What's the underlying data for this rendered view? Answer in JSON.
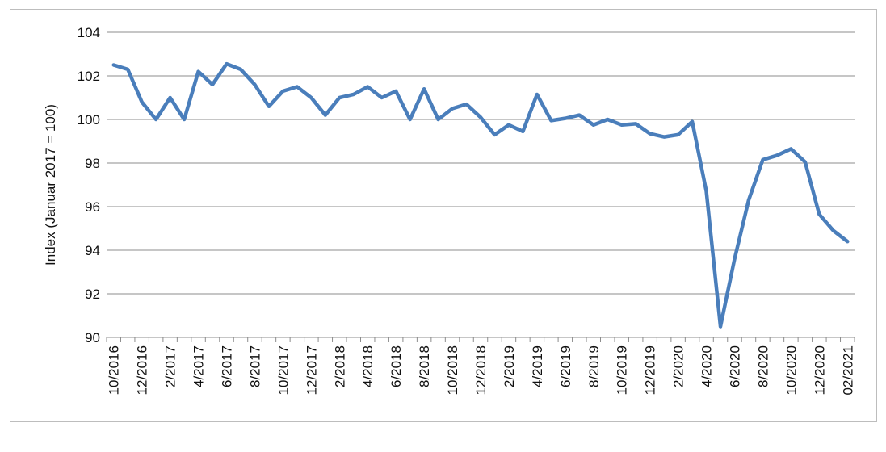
{
  "chart_data": {
    "type": "line",
    "title": "",
    "xlabel": "",
    "ylabel": "Index (Januar 2017 = 100)",
    "ylim": [
      90,
      104
    ],
    "y_ticks": [
      "90",
      "92",
      "94",
      "96",
      "98",
      "100",
      "102",
      "104"
    ],
    "x_tick_labels": [
      "10/2016",
      "12/2016",
      "2/2017",
      "4/2017",
      "6/2017",
      "8/2017",
      "10/2017",
      "12/2017",
      "2/2018",
      "4/2018",
      "6/2018",
      "8/2018",
      "10/2018",
      "12/2018",
      "2/2019",
      "4/2019",
      "6/2019",
      "8/2019",
      "10/2019",
      "12/2019",
      "2/2020",
      "4/2020",
      "6/2020",
      "8/2020",
      "10/2020",
      "12/2020",
      "02/2021"
    ],
    "grid": true,
    "legend": "none",
    "line_color": "#4a7ebb",
    "series": [
      {
        "values": [
          102.5,
          102.3,
          100.8,
          100.0,
          101.0,
          100.0,
          102.2,
          101.6,
          102.55,
          102.3,
          101.6,
          100.6,
          101.3,
          101.5,
          101.0,
          100.2,
          101.0,
          101.15,
          101.5,
          101.0,
          101.3,
          100.0,
          101.4,
          100.0,
          100.5,
          100.7,
          100.1,
          99.3,
          99.75,
          99.45,
          101.15,
          99.95,
          100.05,
          100.2,
          99.75,
          100.0,
          99.75,
          99.8,
          99.35,
          99.2,
          99.3,
          99.9,
          96.7,
          90.5,
          93.6,
          96.3,
          98.15,
          98.35,
          98.65,
          98.05,
          95.65,
          94.9,
          94.4
        ]
      }
    ]
  }
}
